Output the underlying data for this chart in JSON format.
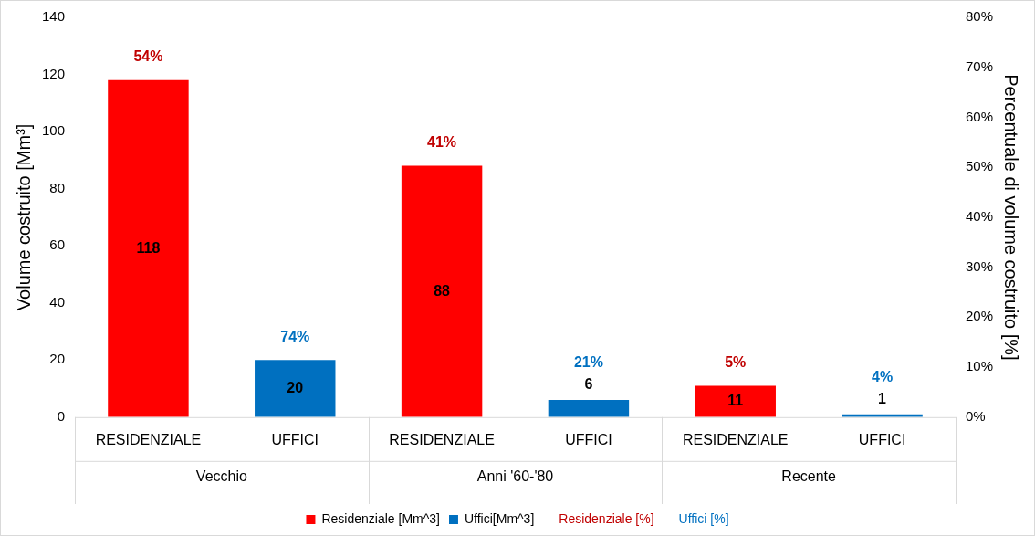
{
  "chart_data": {
    "type": "bar",
    "categories": [
      "RESIDENZIALE",
      "UFFICI",
      "RESIDENZIALE",
      "UFFICI",
      "RESIDENZIALE",
      "UFFICI"
    ],
    "ylabel": "Volume costruito [Mm³]",
    "y2label": "Percentuale di volume costruito [%]",
    "ylim": [
      0,
      140
    ],
    "yticks": [
      0,
      20,
      40,
      60,
      80,
      100,
      120,
      140
    ],
    "y2lim": [
      0,
      80
    ],
    "y2ticks": [
      {
        "value": 0,
        "label": "0%"
      },
      {
        "value": 10,
        "label": "10%"
      },
      {
        "value": 20,
        "label": "20%"
      },
      {
        "value": 30,
        "label": "30%"
      },
      {
        "value": 40,
        "label": "40%"
      },
      {
        "value": 50,
        "label": "50%"
      },
      {
        "value": 60,
        "label": "60%"
      },
      {
        "value": 70,
        "label": "70%"
      },
      {
        "value": 80,
        "label": "80%"
      }
    ],
    "series": [
      {
        "name": "Residenziale [Mm^3]",
        "color": "#ff0000",
        "values": [
          118,
          null,
          88,
          null,
          11,
          null
        ]
      },
      {
        "name": "Uffici[Mm^3]",
        "color": "#0070c0",
        "values": [
          null,
          20,
          null,
          6,
          null,
          1
        ]
      }
    ],
    "annotations": [
      "Vecchio",
      "Anni '60-'80",
      "Recente",
      "54%",
      "74%",
      "41%",
      "21%",
      "5%",
      "4%",
      "Residenziale [%]",
      "Uffici [%]"
    ],
    "data_labels": true,
    "grid": false,
    "legend": "bottom"
  }
}
